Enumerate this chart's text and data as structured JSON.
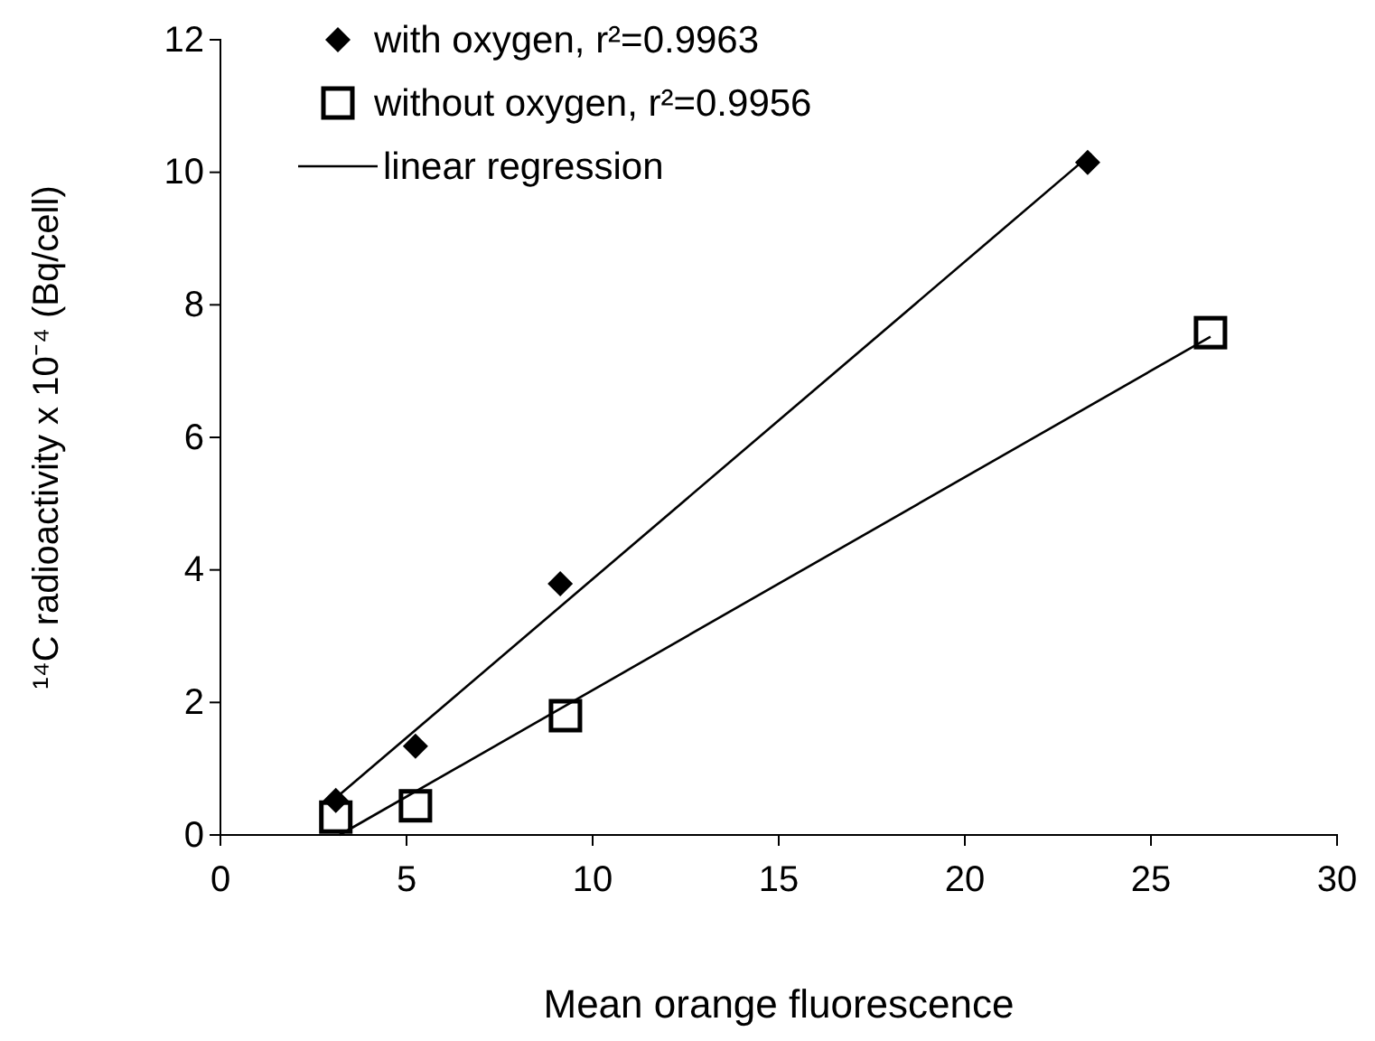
{
  "chart_data": {
    "type": "scatter",
    "xlabel": "Mean orange fluorescence",
    "ylabel": "¹⁴C radioactivity x 10⁻⁴ (Bq/cell)",
    "xlim": [
      0,
      30
    ],
    "xticks": [
      0,
      5,
      10,
      15,
      20,
      25,
      30
    ],
    "ylim": [
      0,
      12
    ],
    "yticks": [
      0,
      2,
      4,
      6,
      8,
      10,
      12
    ],
    "grid": false,
    "legend": "top left",
    "series": [
      {
        "name": "with oxygen, r²=0.9963",
        "marker": "diamond",
        "color": "#000000",
        "x": [
          3.1,
          5.24,
          9.13,
          23.3
        ],
        "values": [
          0.52,
          1.34,
          3.79,
          10.15
        ]
      },
      {
        "name": "without oxygen, r²=0.9956",
        "marker": "square",
        "color": "#000000",
        "x": [
          3.1,
          5.24,
          9.27,
          26.6
        ],
        "values": [
          0.27,
          0.44,
          1.8,
          7.58
        ]
      },
      {
        "name": "linear regression",
        "type": "line",
        "marker": "none",
        "line_style": "solid",
        "color": "#000000",
        "x": [
          3.0,
          23.4
        ],
        "values": [
          0.51,
          10.28
        ]
      },
      {
        "type": "line",
        "marker": "none",
        "line_style": "solid",
        "color": "#000000",
        "x": [
          3.2,
          26.6
        ],
        "values": [
          0.0,
          7.52
        ]
      }
    ]
  }
}
